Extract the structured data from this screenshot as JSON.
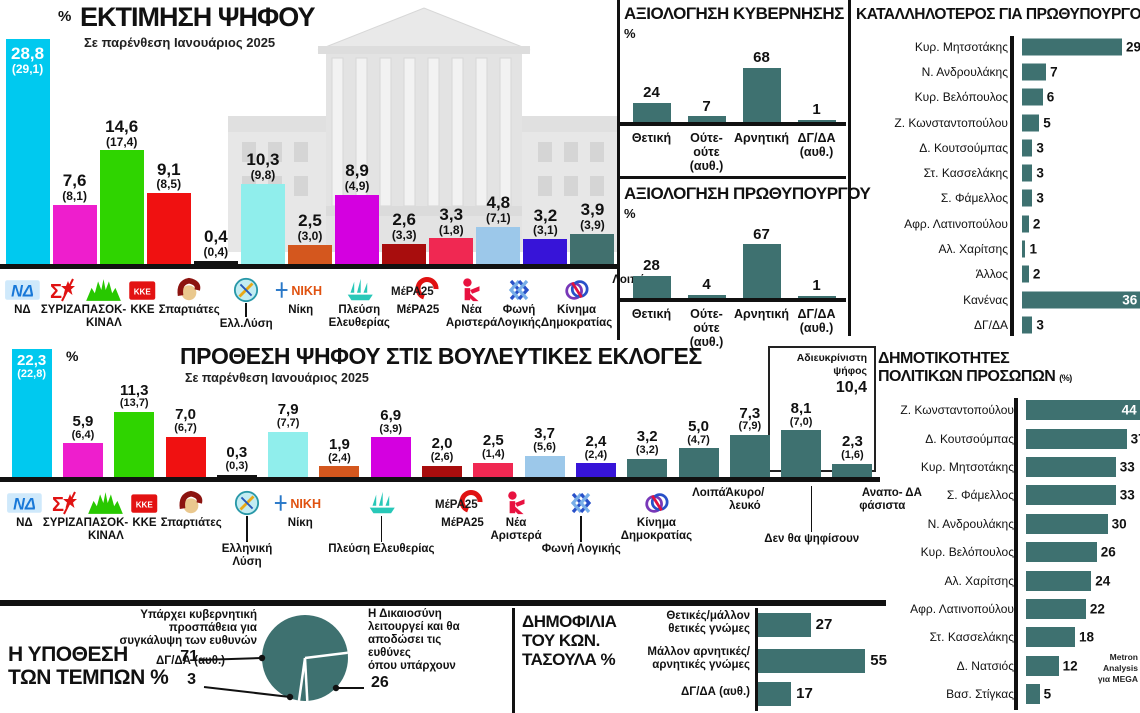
{
  "source": {
    "lines": [
      "Metron",
      "Analysis",
      "για MEGA"
    ]
  },
  "colors": {
    "teal": "#3e7170",
    "axis": "#111111"
  },
  "chart_data": [
    {
      "id": "vote-estimate",
      "type": "bar",
      "title": "ΕΚΤΙΜΗΣΗ ΨΗΦΟΥ",
      "subtitle": "Σε παρένθεση Ιανουάριος 2025",
      "unit": "%",
      "note": "values are percent; previous wave (January 2025) in parentheses",
      "items": [
        {
          "id": "nd",
          "name": "ΝΔ",
          "lines": [
            "ΝΔ"
          ],
          "logo": "nd",
          "value": 28.8,
          "display": "28,8",
          "prev": "(29,1)",
          "color": "#00c9ef",
          "inside": true
        },
        {
          "id": "syriza",
          "name": "ΣΥΡΙΖΑ",
          "lines": [
            "ΣΥΡΙΖΑ"
          ],
          "logo": "syriza",
          "value": 7.6,
          "display": "7,6",
          "prev": "(8,1)",
          "color": "#ee1ecd"
        },
        {
          "id": "pasok",
          "name": "ΠΑΣΟΚ-ΚΙΝΑΛ",
          "lines": [
            "ΠΑΣΟΚ-",
            "ΚΙΝΑΛ"
          ],
          "logo": "pasok",
          "value": 14.6,
          "display": "14,6",
          "prev": "(17,4)",
          "color": "#2fd400"
        },
        {
          "id": "kke",
          "name": "ΚΚΕ",
          "lines": [
            "ΚΚΕ"
          ],
          "logo": "kke",
          "value": 9.1,
          "display": "9,1",
          "prev": "(8,5)",
          "color": "#f01111"
        },
        {
          "id": "spartiates",
          "name": "Σπαρτιάτες",
          "lines": [
            "Σπαρτιάτες"
          ],
          "logo": "spart",
          "value": 0.4,
          "display": "0,4",
          "prev": "(0,4)",
          "color": "#111111"
        },
        {
          "id": "elliniki-lysi",
          "name": "Ελλ.Λύση",
          "lines": [
            "Ελλ.Λύση"
          ],
          "logo": "ellysi",
          "drop": true,
          "dropH": 14,
          "value": 10.3,
          "display": "10,3",
          "prev": "(9,8)",
          "color": "#90eeec"
        },
        {
          "id": "niki",
          "name": "Νίκη",
          "lines": [
            "Νίκη"
          ],
          "logo": "niki",
          "value": 2.5,
          "display": "2,5",
          "prev": "(3,0)",
          "color": "#d4571e"
        },
        {
          "id": "plefsi",
          "name": "Πλεύση Ελευθερίας",
          "lines": [
            "Πλεύση",
            "Ελευθερίας"
          ],
          "logo": "plefsi",
          "value": 8.9,
          "display": "8,9",
          "prev": "(4,9)",
          "color": "#d400e0"
        },
        {
          "id": "mera25",
          "name": "ΜέΡΑ25",
          "lines": [
            "ΜέΡΑ25"
          ],
          "logo": "mera",
          "value": 2.6,
          "display": "2,6",
          "prev": "(3,3)",
          "color": "#a80d0d"
        },
        {
          "id": "nea-aristera",
          "name": "Νέα Αριστερά",
          "lines": [
            "Νέα",
            "Αριστερά"
          ],
          "logo": "nealeft",
          "value": 3.3,
          "display": "3,3",
          "prev": "(1,8)",
          "color": "#f02852"
        },
        {
          "id": "foni-logikis",
          "name": "Φωνή Λογικής",
          "lines": [
            "Φωνή",
            "Λογικής"
          ],
          "logo": "foni",
          "value": 4.8,
          "display": "4,8",
          "prev": "(7,1)",
          "color": "#9cc8ea"
        },
        {
          "id": "kinima-dimokratias",
          "name": "Κίνημα Δημοκρατίας",
          "lines": [
            "Κίνημα",
            "Δημοκρατίας"
          ],
          "logo": "kinima",
          "value": 3.2,
          "display": "3,2",
          "prev": "(3,1)",
          "color": "#3714d8"
        },
        {
          "id": "loipa",
          "name": "Λοιπά",
          "lines": [
            "Λοιπά"
          ],
          "value": 3.9,
          "display": "3,9",
          "prev": "(3,9)",
          "color": "#41706e"
        }
      ]
    },
    {
      "id": "vote-intention",
      "type": "bar",
      "title": "ΠΡΟΘΕΣΗ ΨΗΦΟΥ ΣΤΙΣ ΒΟΥΛΕΥΤΙΚΕΣ ΕΚΛΟΓΕΣ",
      "subtitle": "Σε παρένθεση Ιανουάριος 2025",
      "unit": "%",
      "annotation": {
        "lines": [
          "Αδιευκρίνιστη",
          "ψήφος"
        ],
        "value": "10,4"
      },
      "items": [
        {
          "id": "nd",
          "name": "ΝΔ",
          "lines": [
            "ΝΔ"
          ],
          "logo": "nd",
          "value": 22.3,
          "display": "22,3",
          "prev": "(22,8)",
          "color": "#00c9ef",
          "inside": true
        },
        {
          "id": "syriza",
          "name": "ΣΥΡΙΖΑ",
          "lines": [
            "ΣΥΡΙΖΑ"
          ],
          "logo": "syriza",
          "value": 5.9,
          "display": "5,9",
          "prev": "(6,4)",
          "color": "#ee1ecd"
        },
        {
          "id": "pasok",
          "name": "ΠΑΣΟΚ-ΚΙΝΑΛ",
          "lines": [
            "ΠΑΣΟΚ-",
            "ΚΙΝΑΛ"
          ],
          "logo": "pasok",
          "value": 11.3,
          "display": "11,3",
          "prev": "(13,7)",
          "color": "#2fd400"
        },
        {
          "id": "kke",
          "name": "ΚΚΕ",
          "lines": [
            "ΚΚΕ"
          ],
          "logo": "kke",
          "value": 7.0,
          "display": "7,0",
          "prev": "(6,7)",
          "color": "#f01111"
        },
        {
          "id": "spartiates",
          "name": "Σπαρτιάτες",
          "lines": [
            "Σπαρτιάτες"
          ],
          "logo": "spart",
          "value": 0.3,
          "display": "0,3",
          "prev": "(0,3)",
          "color": "#111111"
        },
        {
          "id": "elliniki-lysi",
          "name": "Ελληνική Λύση",
          "lines": [
            "Ελληνική",
            "Λύση"
          ],
          "logo": "ellysi",
          "drop": true,
          "dropH": 26,
          "value": 7.9,
          "display": "7,9",
          "prev": "(7,7)",
          "color": "#90eeec"
        },
        {
          "id": "niki",
          "name": "Νίκη",
          "lines": [
            "Νίκη"
          ],
          "logo": "niki",
          "value": 1.9,
          "display": "1,9",
          "prev": "(2,4)",
          "color": "#d4571e"
        },
        {
          "id": "plefsi",
          "name": "Πλεύση Ελευθερίας",
          "lines": [
            "Πλεύση Ελευθερίας"
          ],
          "logo": "plefsi",
          "drop": true,
          "dropH": 26,
          "value": 6.9,
          "display": "6,9",
          "prev": "(3,9)",
          "color": "#d400e0"
        },
        {
          "id": "mera25",
          "name": "ΜέΡΑ25",
          "lines": [
            "ΜέΡΑ25"
          ],
          "logo": "mera",
          "value": 2.0,
          "display": "2,0",
          "prev": "(2,6)",
          "color": "#a80d0d"
        },
        {
          "id": "nea-aristera",
          "name": "Νέα Αριστερά",
          "lines": [
            "Νέα",
            "Αριστερά"
          ],
          "logo": "nealeft",
          "value": 2.5,
          "display": "2,5",
          "prev": "(1,4)",
          "color": "#f02852"
        },
        {
          "id": "foni-logikis",
          "name": "Φωνή Λογικής",
          "lines": [
            "Φωνή Λογικής"
          ],
          "logo": "foni",
          "drop": true,
          "dropH": 26,
          "value": 3.7,
          "display": "3,7",
          "prev": "(5,6)",
          "color": "#9cc8ea"
        },
        {
          "id": "kinima-dimokratias",
          "name": "Κίνημα Δημοκρατίας",
          "lines": [
            "Κίνημα",
            "Δημοκρατίας"
          ],
          "logo": "kinima",
          "value": 2.4,
          "display": "2,4",
          "prev": "(2,4)",
          "color": "#3714d8"
        },
        {
          "id": "loipa",
          "name": "Λοιπά",
          "lines": [
            "Λοιπά"
          ],
          "value": 3.2,
          "display": "3,2",
          "prev": "(3,2)",
          "color": "#3e7170"
        },
        {
          "id": "akyro-lefko",
          "name": "Άκυρο/λευκό",
          "lines": [
            "Άκυρο/",
            "λευκό"
          ],
          "value": 5.0,
          "display": "5,0",
          "prev": "(4,7)",
          "color": "#3e7170"
        },
        {
          "id": "den-tha-psifisoun",
          "name": "Δεν θα ψηφίσουν",
          "lines": [
            "Δεν θα ψηφίσουν"
          ],
          "drop": true,
          "dropH": 46,
          "value": 7.3,
          "display": "7,3",
          "prev": "(7,9)",
          "color": "#3e7170"
        },
        {
          "id": "anapofasista",
          "name": "Αναποφάσιστα",
          "lines": [
            "Αναπο-",
            "φάσιστα"
          ],
          "value": 8.1,
          "display": "8,1",
          "prev": "(7,0)",
          "color": "#3e7170"
        },
        {
          "id": "da",
          "name": "ΔΑ",
          "lines": [
            "ΔΑ"
          ],
          "value": 2.3,
          "display": "2,3",
          "prev": "(1,6)",
          "color": "#3e7170"
        }
      ]
    },
    {
      "id": "gov-evaluation",
      "type": "bar",
      "title": "ΑΞΙΟΛΟΓΗΣΗ ΚΥΒΕΡΝΗΣΗΣ",
      "unit": "%",
      "items": [
        {
          "id": "thetiki",
          "cat_lines": [
            "Θετική"
          ],
          "value": 24,
          "display": "24"
        },
        {
          "id": "oute-oute",
          "cat_lines": [
            "Ούτε-",
            "ούτε",
            "(αυθ.)"
          ],
          "value": 7,
          "display": "7"
        },
        {
          "id": "arnitiki",
          "cat_lines": [
            "Αρνητική"
          ],
          "value": 68,
          "display": "68"
        },
        {
          "id": "dg-da",
          "cat_lines": [
            "ΔΓ/ΔΑ",
            "(αυθ.)"
          ],
          "value": 1,
          "display": "1"
        }
      ]
    },
    {
      "id": "pm-evaluation",
      "type": "bar",
      "title": "ΑΞΙΟΛΟΓΗΣΗ ΠΡΩΘΥΠΟΥΡΓΟΥ",
      "unit": "%",
      "items": [
        {
          "id": "thetiki",
          "cat_lines": [
            "Θετική"
          ],
          "value": 28,
          "display": "28"
        },
        {
          "id": "oute-oute",
          "cat_lines": [
            "Ούτε-",
            "ούτε",
            "(αυθ.)"
          ],
          "value": 4,
          "display": "4"
        },
        {
          "id": "arnitiki",
          "cat_lines": [
            "Αρνητική"
          ],
          "value": 67,
          "display": "67"
        },
        {
          "id": "dg-da",
          "cat_lines": [
            "ΔΓ/ΔΑ",
            "(αυθ.)"
          ],
          "value": 1,
          "display": "1"
        }
      ]
    },
    {
      "id": "best-pm",
      "type": "hbar",
      "title": "ΚΑΤΑΛΛΗΛΟΤΕΡΟΣ ΓΙΑ ΠΡΩΘΥΠΟΥΡΓΟΣ",
      "unit": "(%)",
      "items": [
        {
          "id": "mitsotakis",
          "name": "Κυρ. Μητσοτάκης",
          "value": 29,
          "display": "29"
        },
        {
          "id": "androulakis",
          "name": "Ν. Ανδρουλάκης",
          "value": 7,
          "display": "7"
        },
        {
          "id": "velopoulos",
          "name": "Κυρ. Βελόπουλος",
          "value": 6,
          "display": "6"
        },
        {
          "id": "konstantopoulou",
          "name": "Ζ. Κωνσταντοπούλου",
          "value": 5,
          "display": "5"
        },
        {
          "id": "koutsoumpas",
          "name": "Δ. Κουτσούμπας",
          "value": 3,
          "display": "3"
        },
        {
          "id": "kasselakis",
          "name": "Στ. Κασσελάκης",
          "value": 3,
          "display": "3"
        },
        {
          "id": "famellos",
          "name": "Σ. Φάμελλος",
          "value": 3,
          "display": "3"
        },
        {
          "id": "latinopoulou",
          "name": "Αφρ. Λατινοπούλου",
          "value": 2,
          "display": "2"
        },
        {
          "id": "charitsis",
          "name": "Αλ. Χαρίτσης",
          "value": 1,
          "display": "1"
        },
        {
          "id": "allos",
          "name": "Άλλος",
          "value": 2,
          "display": "2"
        },
        {
          "id": "kanenas",
          "name": "Κανένας",
          "value": 36,
          "display": "36",
          "inside": true
        },
        {
          "id": "dg-da",
          "name": "ΔΓ/ΔΑ",
          "value": 3,
          "display": "3"
        }
      ]
    },
    {
      "id": "popularity",
      "type": "hbar",
      "title_lines": [
        "ΔΗΜΟΤΙΚΟΤΗΤΕΣ",
        "ΠΟΛΙΤΙΚΩΝ ΠΡΟΣΩΠΩΝ"
      ],
      "unit": "(%)",
      "items": [
        {
          "id": "konstantopoulou",
          "name": "Ζ. Κωνσταντοπούλου",
          "value": 44,
          "display": "44",
          "inside": true
        },
        {
          "id": "koutsoumpas",
          "name": "Δ. Κουτσούμπας",
          "value": 37,
          "display": "37"
        },
        {
          "id": "mitsotakis",
          "name": "Κυρ. Μητσοτάκης",
          "value": 33,
          "display": "33"
        },
        {
          "id": "famellos",
          "name": "Σ. Φάμελλος",
          "value": 33,
          "display": "33"
        },
        {
          "id": "androulakis",
          "name": "Ν. Ανδρουλάκης",
          "value": 30,
          "display": "30"
        },
        {
          "id": "velopoulos",
          "name": "Κυρ. Βελόπουλος",
          "value": 26,
          "display": "26"
        },
        {
          "id": "charitsis",
          "name": "Αλ. Χαρίτσης",
          "value": 24,
          "display": "24"
        },
        {
          "id": "latinopoulou",
          "name": "Αφρ. Λατινοπούλου",
          "value": 22,
          "display": "22"
        },
        {
          "id": "kasselakis",
          "name": "Στ. Κασσελάκης",
          "value": 18,
          "display": "18"
        },
        {
          "id": "natsios",
          "name": "Δ. Νατσιός",
          "value": 12,
          "display": "12"
        },
        {
          "id": "stigkas",
          "name": "Βασ. Στίγκας",
          "value": 5,
          "display": "5"
        }
      ]
    },
    {
      "id": "tempi-case",
      "type": "pie",
      "title_lines": [
        "Η ΥΠΟΘΕΣΗ",
        "ΤΩΝ ΤΕΜΠΩΝ %"
      ],
      "slices": [
        {
          "id": "cover-up",
          "label_lines": [
            "Υπάρχει κυβερνητική",
            "προσπάθεια για",
            "συγκάλυψη των ευθυνών"
          ],
          "value": 71,
          "display": "71"
        },
        {
          "id": "justice-works",
          "label_lines": [
            "Η Δικαιοσύνη",
            "λειτουργεί και θα",
            "αποδώσει τις ευθύνες",
            "όπου υπάρχουν"
          ],
          "value": 26,
          "display": "26"
        },
        {
          "id": "dg-da",
          "label_lines": [
            "ΔΓ/ΔΑ (αυθ.)"
          ],
          "value": 3,
          "display": "3"
        }
      ]
    },
    {
      "id": "tasoulas-popularity",
      "type": "hbar",
      "title_lines": [
        "ΔΗΜΟΦΙΛΙΑ",
        "ΤΟΥ ΚΩΝ.",
        "ΤΑΣΟΥΛΑ %"
      ],
      "items": [
        {
          "id": "positive",
          "label_lines": [
            "Θετικές/μάλλον",
            "θετικές γνώμες"
          ],
          "value": 27,
          "display": "27"
        },
        {
          "id": "negative",
          "label_lines": [
            "Μάλλον αρνητικές/",
            "αρνητικές γνώμες"
          ],
          "value": 55,
          "display": "55"
        },
        {
          "id": "dg-da",
          "label_lines": [
            "ΔΓ/ΔΑ (αυθ.)"
          ],
          "value": 17,
          "display": "17"
        }
      ]
    }
  ]
}
